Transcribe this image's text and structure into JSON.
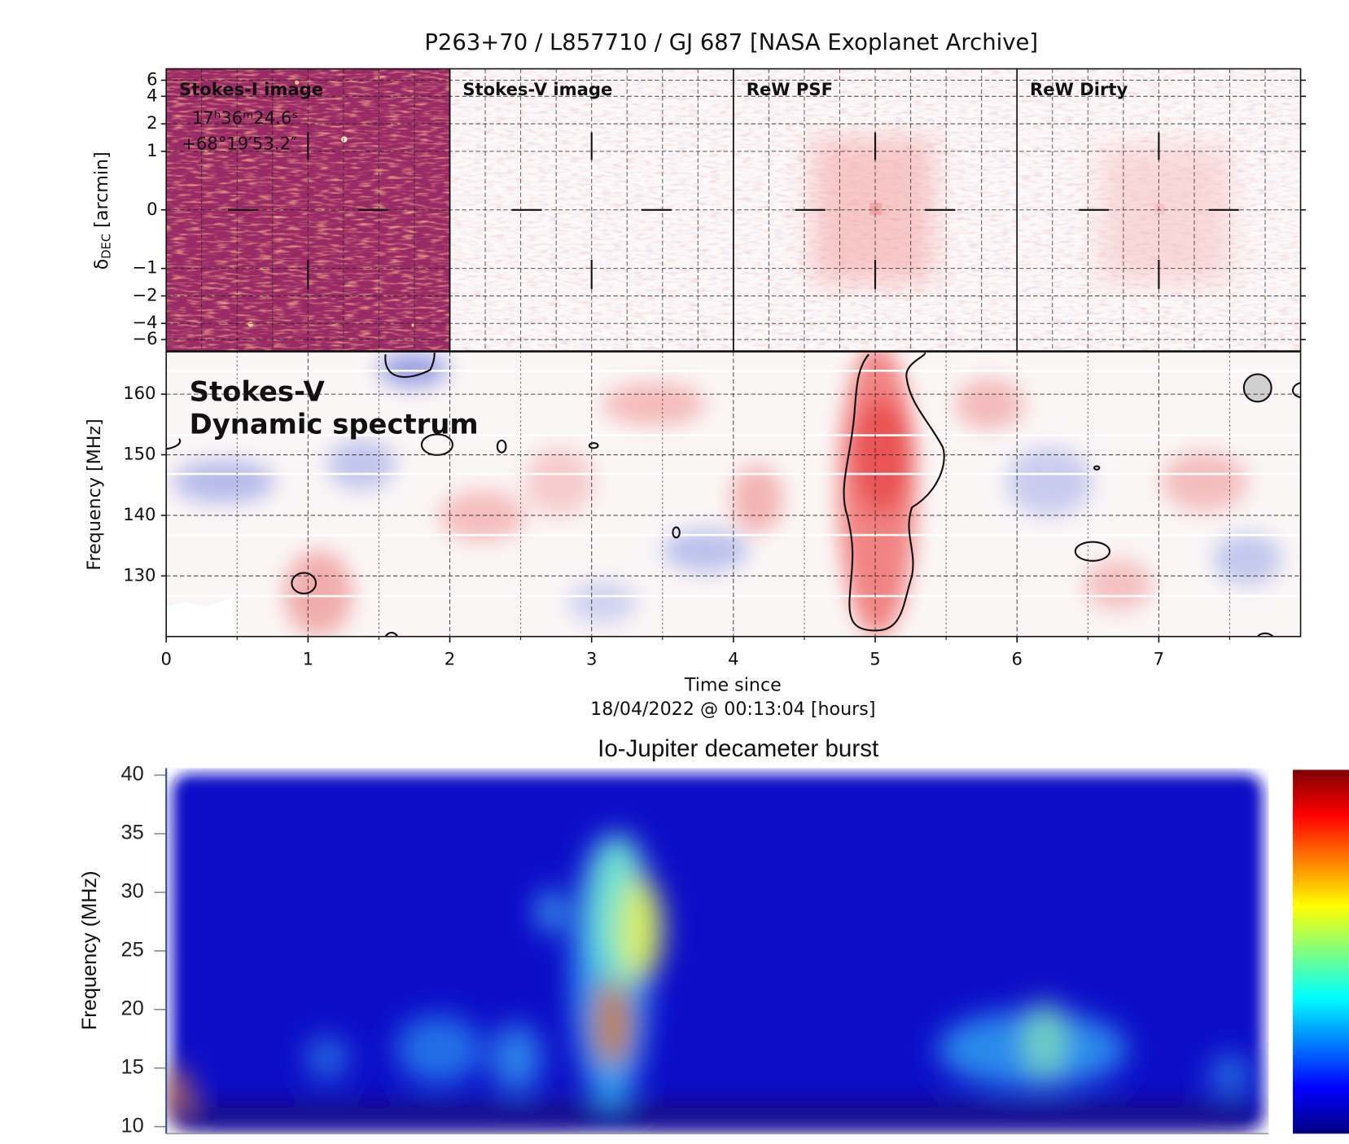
{
  "chart_data": [
    {
      "type": "image-grid",
      "title": "P263+70 / L857710 / GJ 687 [NASA Exoplanet Archive]",
      "panels": [
        "Stokes-I image",
        "Stokes-V image",
        "ReW PSF",
        "ReW Dirty"
      ],
      "annotation": [
        "17ʰ36ᵐ24.6ˢ",
        "+68°19′53.2″"
      ],
      "ylabel": {
        "symbol": "δ",
        "subscript": "DEC",
        "unit": "[arcmin]"
      },
      "yscale": "symlog",
      "ylim": [
        -8,
        8
      ],
      "yticks": [
        6,
        4,
        2,
        1,
        0,
        {
          "value": -1,
          "label": "−1"
        },
        {
          "value": -2,
          "label": "−2"
        },
        {
          "value": -4,
          "label": "−4"
        },
        {
          "value": -6,
          "label": "−6"
        }
      ],
      "grid": true
    },
    {
      "type": "heatmap",
      "title": [
        "Stokes-V",
        "Dynamic spectrum"
      ],
      "xlabel": [
        "Time since",
        "18/04/2022 @ 00:13:04 [hours]"
      ],
      "ylabel": "Frequency [MHz]",
      "xlim": [
        0,
        8
      ],
      "xticks": [
        0,
        1,
        2,
        3,
        4,
        5,
        6,
        7
      ],
      "xticks_minor": [
        0.5,
        1.5,
        2.5,
        3.5,
        4.5,
        5.5,
        6.5,
        7.5
      ],
      "ylim": [
        120,
        167
      ],
      "yticks": [
        130,
        140,
        150,
        160
      ],
      "grid": true
    },
    {
      "type": "heatmap",
      "title": "Io-Jupiter decameter burst",
      "ylabel": "Frequency (MHz)",
      "ylim": [
        9.4,
        40.6
      ],
      "yticks": [
        10,
        15,
        20,
        25,
        30,
        35,
        40
      ],
      "colormap": "jet"
    }
  ]
}
